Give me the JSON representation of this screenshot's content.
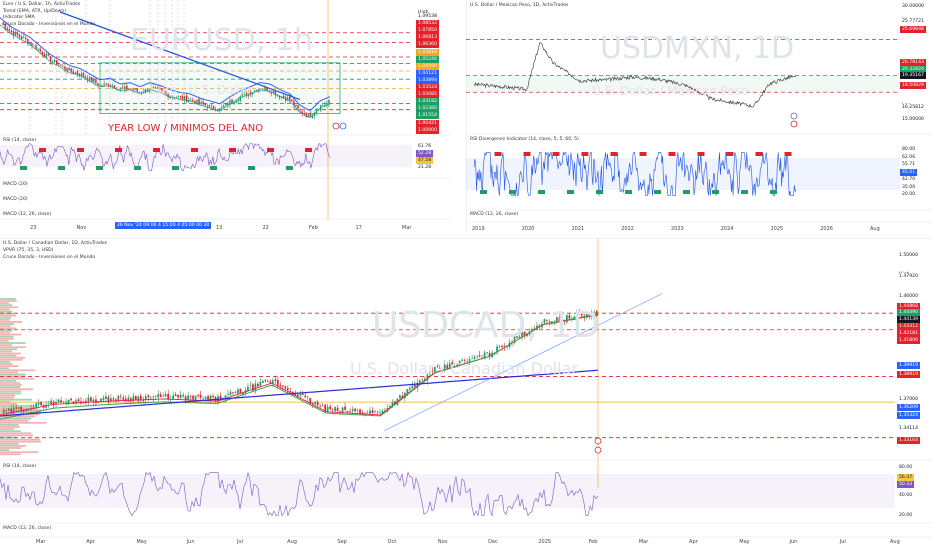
{
  "colors": {
    "red": "#e0242b",
    "green": "#1e9e62",
    "blue": "#2962ff",
    "orange": "#f5a623",
    "purple": "#7e57c2",
    "gray": "#787b86",
    "vol_green": "#7fc79a",
    "vol_red": "#ef9a9a"
  },
  "p1": {
    "header": [
      "Euro / U.S. Dollar, 1h, ActivTrades",
      "Trend (EMA, ATR, Up/Down)",
      "Indicator SMA",
      "Cruce Dorado - Inversiones en el Mundo"
    ],
    "watermark": "EURUSD, 1h",
    "watermark_sub": "Euro / U.S. Dollar",
    "annotation": "YEAR LOW / MINIMOS DEL ANO",
    "rsi_label": "RSI (14, close)",
    "ind_labels": [
      "MACD (20)",
      "MACD (20)",
      "MACD (12, 26, close)"
    ],
    "high_label": "High",
    "price_scale": [
      "1.10000",
      "1.09538",
      "1.08532",
      "1.07850",
      "1.06813",
      "1.06360",
      "1.05816",
      "1.05240",
      "1.04590",
      "1.04121",
      "1.03524",
      "1.03085",
      "1.02500",
      "1.02000",
      "1.01500"
    ],
    "price_tags": [
      {
        "text": "1.09538",
        "color": "#ffffff",
        "tc": "#131722"
      },
      {
        "text": "1.08532",
        "color": "#e0242b"
      },
      {
        "text": "1.07850",
        "color": "#e0242b"
      },
      {
        "text": "1.06813",
        "color": "#e0242b"
      },
      {
        "text": "1.06360",
        "color": "#e0242b"
      },
      {
        "text": "1.05816",
        "color": "#f5a623"
      },
      {
        "text": "1.05240",
        "color": "#1e9e62"
      },
      {
        "text": "1.04590",
        "color": "#f5a623"
      },
      {
        "text": "1.04121",
        "color": "#2962ff"
      },
      {
        "text": "1.03894",
        "color": "#2962ff"
      },
      {
        "text": "1.03524",
        "color": "#e0242b"
      },
      {
        "text": "1.03085",
        "color": "#e0242b"
      },
      {
        "text": "1.03182",
        "color": "#1e9e62"
      },
      {
        "text": "1.02380",
        "color": "#1e9e62"
      },
      {
        "text": "1.01554",
        "color": "#1e9e62"
      },
      {
        "text": "1.00421",
        "color": "#e0242b"
      },
      {
        "text": "1.00000",
        "color": "#e0242b"
      }
    ],
    "rsi_scale": [
      "61.76",
      "52.28",
      "47.58",
      "21.28"
    ],
    "x_labels": [
      "23",
      "Nov",
      "18",
      "2025",
      "13",
      "22",
      "Feb",
      "17",
      "Mar"
    ],
    "date_tag": "26 Nov '24   09:00   4   15:00   4   05:00   00   30"
  },
  "p2": {
    "header": "U.S. Dollar / Mexican Peso, 1D, ActivTrades",
    "watermark": "USDMXN, 1D",
    "watermark_sub": "U.S. Dollar / Mexican Peso",
    "rsi_label": "RSI Divergence Indicator (14, close, 5, 5, 60, 5)",
    "macd_label": "MACD (12, 26, close)",
    "high_label": "High",
    "low_label": "Low",
    "price_scale": [
      "30.00000",
      "25.77721",
      "25.69848",
      "20.78143",
      "20.32824",
      "19.35167",
      "18.50829",
      "16.25812",
      "15.00000"
    ],
    "osc_scale": [
      "80.00",
      "62.06",
      "55.71",
      "45.01",
      "42.70",
      "35.00",
      "20.00"
    ],
    "x_labels": [
      "2019",
      "2020",
      "2021",
      "2022",
      "2023",
      "2024",
      "2025",
      "2026",
      "Aug"
    ]
  },
  "p3": {
    "header": [
      "U.S. Dollar / Canadian Dollar, 1D, ActivTrades",
      "VPVR (75, 35, 3, USD)",
      "Cruce Dorado - Inversiones en el Mundo"
    ],
    "watermark": "USDCAD, 1D",
    "watermark_sub": "U.S. Dollar / Canadian Dollar",
    "rsi_label": "RSI (14, close)",
    "macd_label": "MACD (12, 26, close)",
    "high_label": "High",
    "price_scale": [
      "1.50000",
      "1.47920",
      "1.46000",
      "1.44868",
      "1.44490",
      "1.44139",
      "1.43312",
      "1.42181",
      "1.41806",
      "1.39919",
      "1.38919",
      "1.37000",
      "1.36209",
      "1.35324",
      "1.34114",
      "1.33164"
    ],
    "rsi_scale": [
      "80.00",
      "56.37",
      "50.33",
      "40.00",
      "20.00"
    ],
    "x_labels": [
      "Mar",
      "Apr",
      "May",
      "Jun",
      "Jul",
      "Aug",
      "Sep",
      "Oct",
      "Nov",
      "Dec",
      "2025",
      "Feb",
      "Mar",
      "Apr",
      "May",
      "Jun",
      "Jul",
      "Aug"
    ]
  },
  "chart_data": [
    {
      "type": "line",
      "title": "Euro / U.S. Dollar, 1h, ActivTrades",
      "ylabel": "",
      "ylim": [
        1.015,
        1.1
      ],
      "series": [
        {
          "name": "EURUSD",
          "values": [
            1.092,
            1.086,
            1.082,
            1.078,
            1.072,
            1.066,
            1.062,
            1.058,
            1.056,
            1.052,
            1.048,
            1.049,
            1.045,
            1.046,
            1.043,
            1.046,
            1.044,
            1.041,
            1.039,
            1.038,
            1.035,
            1.033,
            1.031,
            1.036,
            1.04,
            1.043,
            1.046,
            1.045,
            1.041,
            1.038,
            1.03,
            1.026,
            1.033,
            1.036
          ]
        }
      ]
    },
    {
      "type": "line",
      "title": "U.S. Dollar / Mexican Peso, 1D, ActivTrades",
      "ylabel": "",
      "ylim": [
        15,
        30
      ],
      "x": [
        2019,
        2019.5,
        2020,
        2020.25,
        2020.5,
        2021,
        2021.5,
        2022,
        2022.5,
        2023,
        2023.5,
        2024,
        2024.3,
        2024.6,
        2025,
        2025.1
      ],
      "series": [
        {
          "name": "USDMXN",
          "values": [
            19.6,
            19.3,
            18.9,
            25.3,
            22.5,
            20.1,
            20.2,
            20.6,
            20.3,
            19.5,
            17.6,
            17.0,
            16.6,
            19.7,
            20.6,
            20.5
          ]
        }
      ]
    },
    {
      "type": "line",
      "title": "U.S. Dollar / Canadian Dollar, 1D, ActivTrades",
      "ylabel": "",
      "ylim": [
        1.32,
        1.51
      ],
      "x": [
        "Mar",
        "Apr",
        "May",
        "Jun",
        "Jul",
        "Aug",
        "Sep",
        "Oct",
        "Nov",
        "Dec",
        "2025",
        "Feb"
      ],
      "series": [
        {
          "name": "USDCAD",
          "values": [
            1.355,
            1.365,
            1.368,
            1.37,
            1.368,
            1.385,
            1.358,
            1.355,
            1.395,
            1.41,
            1.44,
            1.449
          ]
        }
      ]
    }
  ]
}
